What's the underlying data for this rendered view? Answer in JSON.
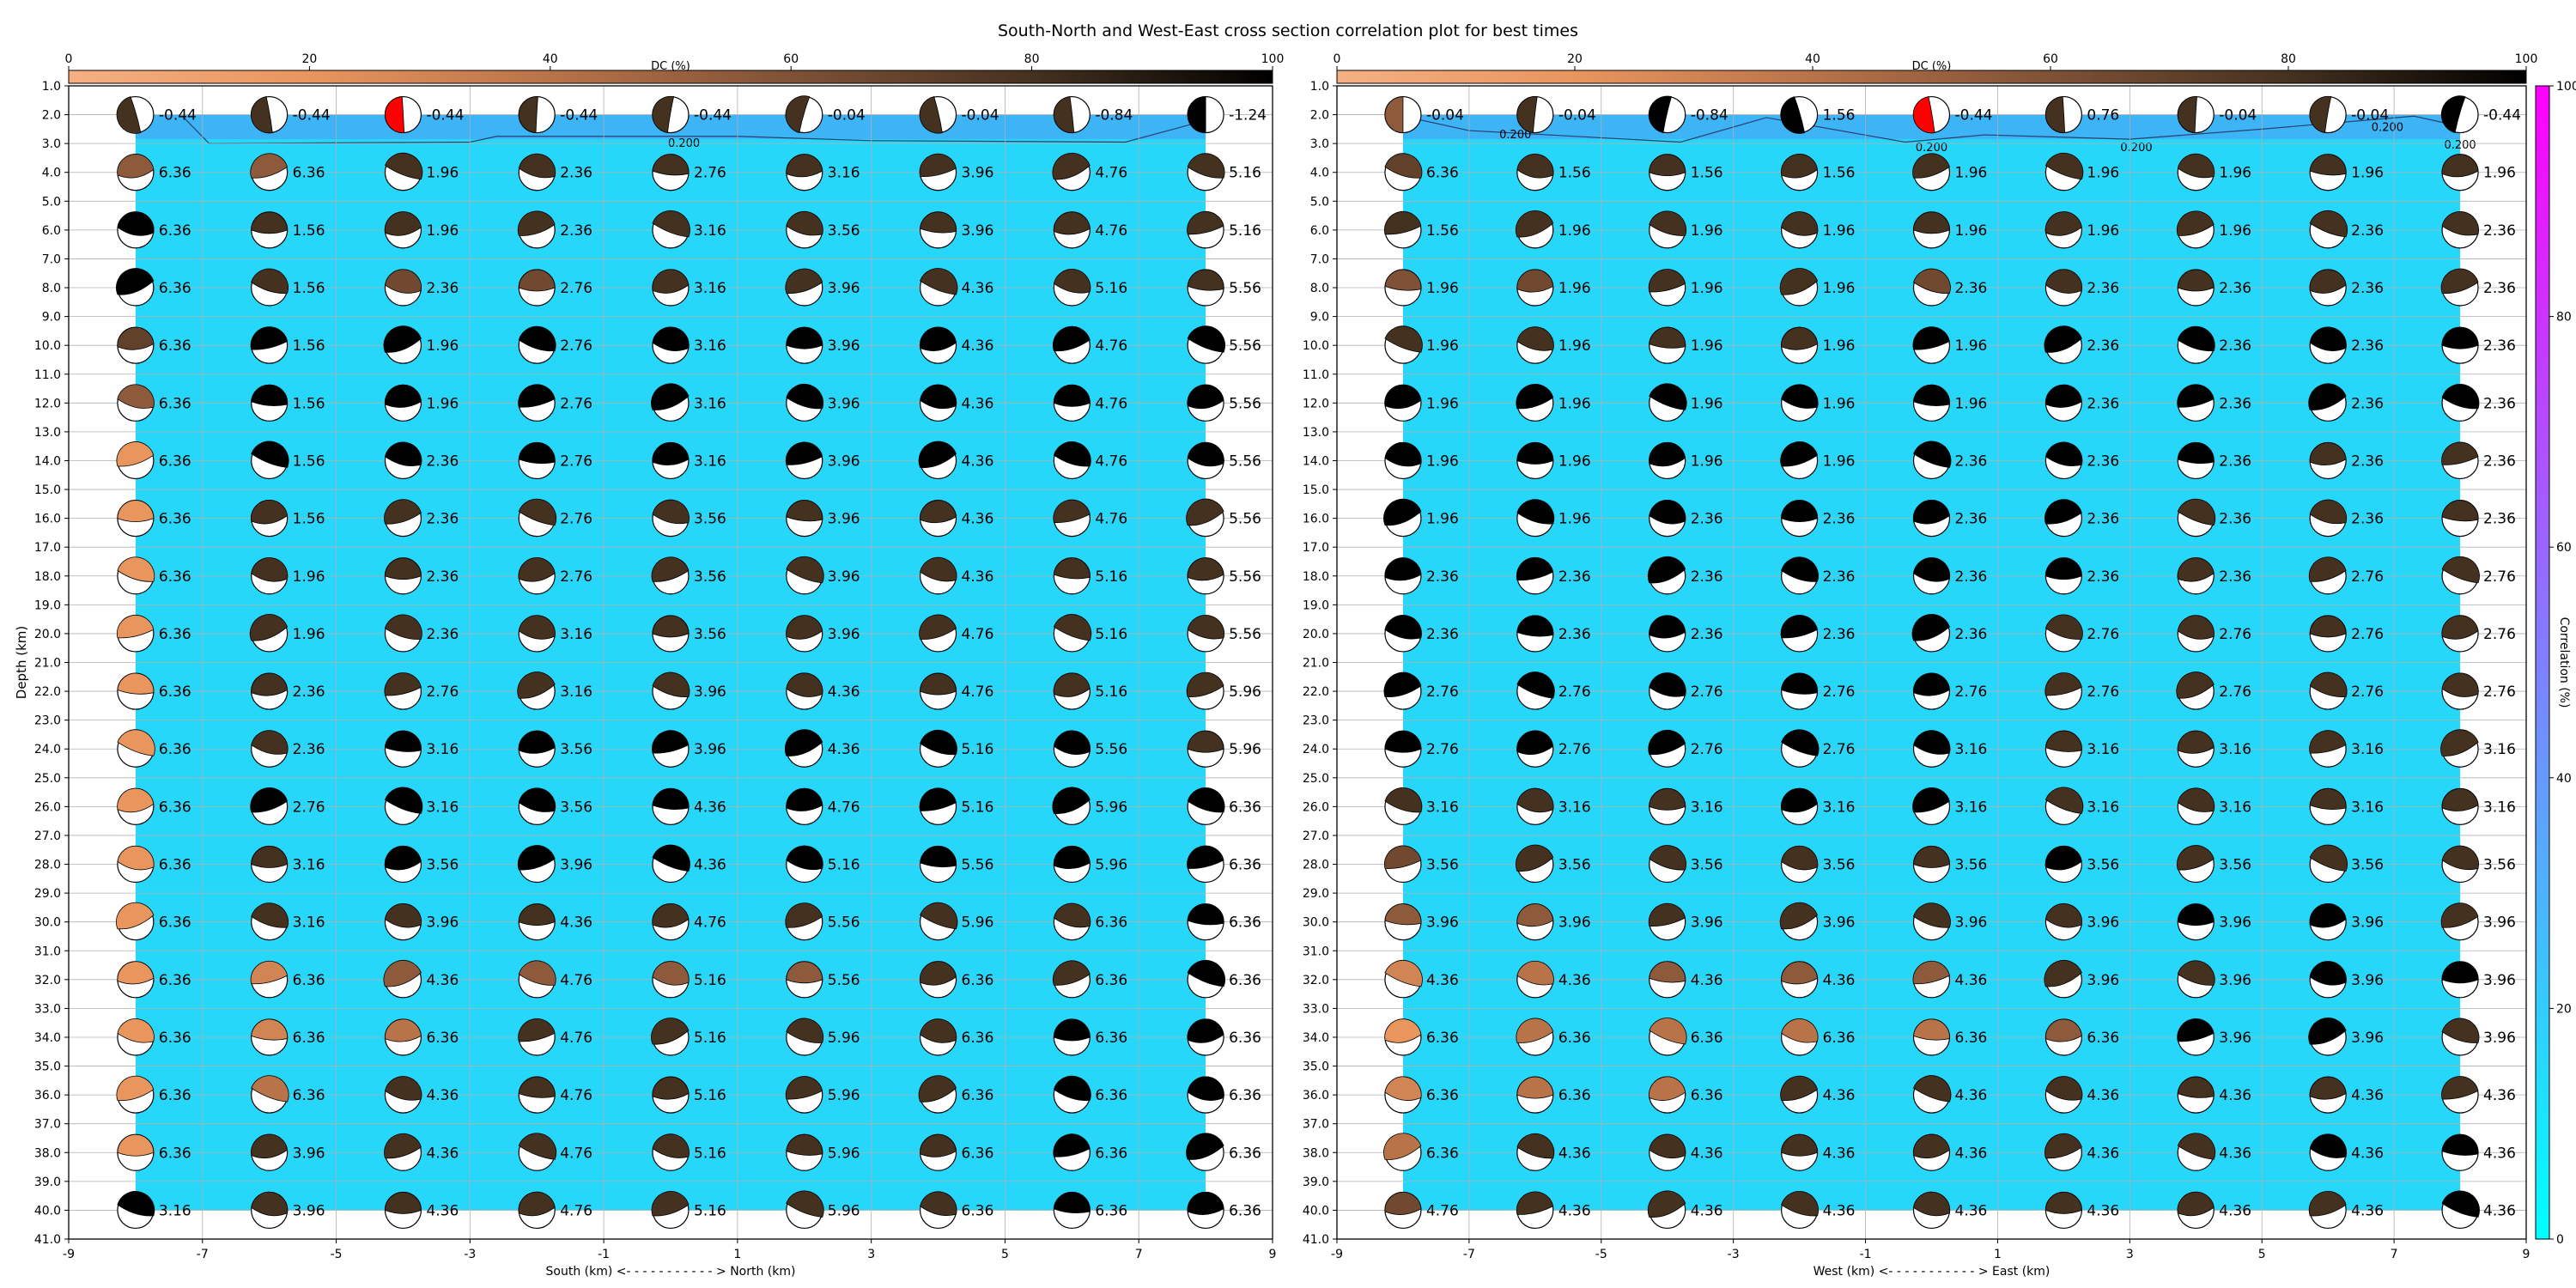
{
  "figure": {
    "title": "South-North and West-East cross section correlation plot for best times"
  },
  "colors": {
    "dc_cmap": [
      "#f4b083",
      "#e9955e",
      "#b87349",
      "#7f5136",
      "#45311f",
      "#000000"
    ],
    "corr_cmap": [
      "#00ffff",
      "#ff00ff"
    ],
    "fill_high": "#27d7fa",
    "fill_low": "#3db4f6",
    "best": "#ff0000"
  },
  "chart_data": [
    {
      "type": "heatmap",
      "subtype": "beachball-correlation-cross-section",
      "xlabel": "South (km) <- - - - - - - - - - - > North (km)",
      "ylabel": "Depth (km)",
      "xlim": [
        -9,
        9
      ],
      "ylim": [
        41,
        1
      ],
      "x_ticks": [
        -9,
        -7,
        -5,
        -3,
        -1,
        1,
        3,
        5,
        7,
        9
      ],
      "y_ticks": [
        1.0,
        2.0,
        3.0,
        4.0,
        5.0,
        6.0,
        7.0,
        8.0,
        9.0,
        10.0,
        11.0,
        12.0,
        13.0,
        14.0,
        15.0,
        16.0,
        17.0,
        18.0,
        19.0,
        20.0,
        21.0,
        22.0,
        23.0,
        24.0,
        25.0,
        26.0,
        27.0,
        28.0,
        29.0,
        30.0,
        31.0,
        32.0,
        33.0,
        34.0,
        35.0,
        36.0,
        37.0,
        38.0,
        39.0,
        40.0,
        41.0
      ],
      "dc_colorbar": {
        "label": "DC (%)",
        "ticks": [
          0,
          20,
          40,
          60,
          80,
          100
        ]
      },
      "x": [
        -8,
        -6,
        -4,
        -2,
        0,
        2,
        4,
        6,
        8
      ],
      "depths": [
        2,
        4,
        6,
        8,
        10,
        12,
        14,
        16,
        18,
        20,
        22,
        24,
        26,
        28,
        30,
        32,
        34,
        36,
        38,
        40
      ],
      "time_labels": [
        [
          "-0.44",
          "-0.44",
          "-0.44",
          "-0.44",
          "-0.44",
          "-0.04",
          "-0.04",
          "-0.84",
          "-1.24"
        ],
        [
          "6.36",
          "6.36",
          "1.96",
          "2.36",
          "2.76",
          "3.16",
          "3.96",
          "4.76",
          "5.16"
        ],
        [
          "6.36",
          "1.56",
          "1.96",
          "2.36",
          "3.16",
          "3.56",
          "3.96",
          "4.76",
          "5.16"
        ],
        [
          "6.36",
          "1.56",
          "2.36",
          "2.76",
          "3.16",
          "3.96",
          "4.36",
          "5.16",
          "5.56"
        ],
        [
          "6.36",
          "1.56",
          "1.96",
          "2.76",
          "3.16",
          "3.96",
          "4.36",
          "4.76",
          "5.56"
        ],
        [
          "6.36",
          "1.56",
          "1.96",
          "2.76",
          "3.16",
          "3.96",
          "4.36",
          "4.76",
          "5.56"
        ],
        [
          "6.36",
          "1.56",
          "2.36",
          "2.76",
          "3.16",
          "3.96",
          "4.36",
          "4.76",
          "5.56"
        ],
        [
          "6.36",
          "1.56",
          "2.36",
          "2.76",
          "3.56",
          "3.96",
          "4.36",
          "4.76",
          "5.56"
        ],
        [
          "6.36",
          "1.96",
          "2.36",
          "2.76",
          "3.56",
          "3.96",
          "4.36",
          "5.16",
          "5.56"
        ],
        [
          "6.36",
          "1.96",
          "2.36",
          "3.16",
          "3.56",
          "3.96",
          "4.76",
          "5.16",
          "5.56"
        ],
        [
          "6.36",
          "2.36",
          "2.76",
          "3.16",
          "3.96",
          "4.36",
          "4.76",
          "5.16",
          "5.96"
        ],
        [
          "6.36",
          "2.36",
          "3.16",
          "3.56",
          "3.96",
          "4.36",
          "5.16",
          "5.56",
          "5.96"
        ],
        [
          "6.36",
          "2.76",
          "3.16",
          "3.56",
          "4.36",
          "4.76",
          "5.16",
          "5.96",
          "6.36"
        ],
        [
          "6.36",
          "3.16",
          "3.56",
          "3.96",
          "4.36",
          "5.16",
          "5.56",
          "5.96",
          "6.36"
        ],
        [
          "6.36",
          "3.16",
          "3.96",
          "4.36",
          "4.76",
          "5.56",
          "5.96",
          "6.36",
          "6.36"
        ],
        [
          "6.36",
          "6.36",
          "4.36",
          "4.76",
          "5.16",
          "5.56",
          "6.36",
          "6.36",
          "6.36"
        ],
        [
          "6.36",
          "6.36",
          "6.36",
          "4.76",
          "5.16",
          "5.96",
          "6.36",
          "6.36",
          "6.36"
        ],
        [
          "6.36",
          "6.36",
          "4.36",
          "4.76",
          "5.16",
          "5.96",
          "6.36",
          "6.36",
          "6.36"
        ],
        [
          "6.36",
          "3.96",
          "4.36",
          "4.76",
          "5.16",
          "5.96",
          "6.36",
          "6.36",
          "6.36"
        ],
        [
          "3.16",
          "3.96",
          "4.36",
          "4.76",
          "5.16",
          "5.96",
          "6.36",
          "6.36",
          "6.36"
        ]
      ],
      "dc_percent": [
        [
          80,
          80,
          80,
          80,
          80,
          80,
          80,
          80,
          100
        ],
        [
          55,
          55,
          80,
          80,
          80,
          80,
          80,
          80,
          80
        ],
        [
          100,
          80,
          80,
          80,
          80,
          80,
          80,
          80,
          80
        ],
        [
          100,
          80,
          65,
          65,
          80,
          80,
          80,
          80,
          80
        ],
        [
          70,
          100,
          100,
          100,
          100,
          100,
          100,
          100,
          100
        ],
        [
          55,
          100,
          100,
          100,
          100,
          100,
          100,
          100,
          100
        ],
        [
          20,
          100,
          100,
          100,
          100,
          100,
          100,
          100,
          100
        ],
        [
          20,
          80,
          80,
          80,
          80,
          80,
          80,
          80,
          80
        ],
        [
          20,
          80,
          80,
          80,
          80,
          80,
          80,
          80,
          80
        ],
        [
          20,
          80,
          80,
          80,
          80,
          80,
          80,
          80,
          80
        ],
        [
          20,
          80,
          80,
          80,
          80,
          80,
          80,
          80,
          80
        ],
        [
          20,
          80,
          100,
          100,
          100,
          100,
          100,
          100,
          80
        ],
        [
          20,
          100,
          100,
          100,
          100,
          100,
          100,
          100,
          100
        ],
        [
          20,
          80,
          100,
          100,
          100,
          100,
          100,
          100,
          100
        ],
        [
          20,
          80,
          80,
          80,
          80,
          80,
          80,
          80,
          100
        ],
        [
          20,
          30,
          55,
          55,
          55,
          55,
          80,
          80,
          100
        ],
        [
          20,
          30,
          40,
          80,
          80,
          80,
          80,
          100,
          100
        ],
        [
          20,
          40,
          80,
          80,
          80,
          80,
          80,
          100,
          100
        ],
        [
          20,
          80,
          80,
          80,
          80,
          80,
          80,
          100,
          100
        ],
        [
          100,
          80,
          80,
          80,
          80,
          80,
          80,
          100,
          100
        ]
      ],
      "best": [
        0,
        2
      ],
      "contour_labels": [
        "0.200"
      ]
    },
    {
      "type": "heatmap",
      "subtype": "beachball-correlation-cross-section",
      "xlabel": "West (km) <- - - - - - - - - - - > East (km)",
      "ylabel": "",
      "xlim": [
        -9,
        9
      ],
      "ylim": [
        41,
        1
      ],
      "x_ticks": [
        -9,
        -7,
        -5,
        -3,
        -1,
        1,
        3,
        5,
        7,
        9
      ],
      "y_ticks": [
        1.0,
        2.0,
        3.0,
        4.0,
        5.0,
        6.0,
        7.0,
        8.0,
        9.0,
        10.0,
        11.0,
        12.0,
        13.0,
        14.0,
        15.0,
        16.0,
        17.0,
        18.0,
        19.0,
        20.0,
        21.0,
        22.0,
        23.0,
        24.0,
        25.0,
        26.0,
        27.0,
        28.0,
        29.0,
        30.0,
        31.0,
        32.0,
        33.0,
        34.0,
        35.0,
        36.0,
        37.0,
        38.0,
        39.0,
        40.0,
        41.0
      ],
      "dc_colorbar": {
        "label": "DC (%)",
        "ticks": [
          0,
          20,
          40,
          60,
          80,
          100
        ]
      },
      "corr_colorbar": {
        "label": "Correlation (%)",
        "ticks": [
          0,
          20,
          40,
          60,
          80,
          100
        ]
      },
      "x": [
        -8,
        -6,
        -4,
        -2,
        0,
        2,
        4,
        6,
        8
      ],
      "depths": [
        2,
        4,
        6,
        8,
        10,
        12,
        14,
        16,
        18,
        20,
        22,
        24,
        26,
        28,
        30,
        32,
        34,
        36,
        38,
        40
      ],
      "time_labels": [
        [
          "-0.04",
          "-0.04",
          "-0.84",
          "1.56",
          "-0.44",
          "0.76",
          "-0.04",
          "-0.04",
          "-0.44"
        ],
        [
          "6.36",
          "1.56",
          "1.56",
          "1.56",
          "1.96",
          "1.96",
          "1.96",
          "1.96",
          "1.96"
        ],
        [
          "1.56",
          "1.96",
          "1.96",
          "1.96",
          "1.96",
          "1.96",
          "1.96",
          "2.36",
          "2.36"
        ],
        [
          "1.96",
          "1.96",
          "1.96",
          "1.96",
          "2.36",
          "2.36",
          "2.36",
          "2.36",
          "2.36"
        ],
        [
          "1.96",
          "1.96",
          "1.96",
          "1.96",
          "1.96",
          "2.36",
          "2.36",
          "2.36",
          "2.36"
        ],
        [
          "1.96",
          "1.96",
          "1.96",
          "1.96",
          "1.96",
          "2.36",
          "2.36",
          "2.36",
          "2.36"
        ],
        [
          "1.96",
          "1.96",
          "1.96",
          "1.96",
          "2.36",
          "2.36",
          "2.36",
          "2.36",
          "2.36"
        ],
        [
          "1.96",
          "1.96",
          "2.36",
          "2.36",
          "2.36",
          "2.36",
          "2.36",
          "2.36",
          "2.36"
        ],
        [
          "2.36",
          "2.36",
          "2.36",
          "2.36",
          "2.36",
          "2.36",
          "2.36",
          "2.76",
          "2.76"
        ],
        [
          "2.36",
          "2.36",
          "2.36",
          "2.36",
          "2.36",
          "2.76",
          "2.76",
          "2.76",
          "2.76"
        ],
        [
          "2.76",
          "2.76",
          "2.76",
          "2.76",
          "2.76",
          "2.76",
          "2.76",
          "2.76",
          "2.76"
        ],
        [
          "2.76",
          "2.76",
          "2.76",
          "2.76",
          "3.16",
          "3.16",
          "3.16",
          "3.16",
          "3.16"
        ],
        [
          "3.16",
          "3.16",
          "3.16",
          "3.16",
          "3.16",
          "3.16",
          "3.16",
          "3.16",
          "3.16"
        ],
        [
          "3.56",
          "3.56",
          "3.56",
          "3.56",
          "3.56",
          "3.56",
          "3.56",
          "3.56",
          "3.56"
        ],
        [
          "3.96",
          "3.96",
          "3.96",
          "3.96",
          "3.96",
          "3.96",
          "3.96",
          "3.96",
          "3.96"
        ],
        [
          "4.36",
          "4.36",
          "4.36",
          "4.36",
          "4.36",
          "3.96",
          "3.96",
          "3.96",
          "3.96"
        ],
        [
          "6.36",
          "6.36",
          "6.36",
          "6.36",
          "6.36",
          "6.36",
          "3.96",
          "3.96",
          "3.96"
        ],
        [
          "6.36",
          "6.36",
          "6.36",
          "4.36",
          "4.36",
          "4.36",
          "4.36",
          "4.36",
          "4.36"
        ],
        [
          "6.36",
          "4.36",
          "4.36",
          "4.36",
          "4.36",
          "4.36",
          "4.36",
          "4.36",
          "4.36"
        ],
        [
          "4.76",
          "4.36",
          "4.36",
          "4.36",
          "4.36",
          "4.36",
          "4.36",
          "4.36",
          "4.36"
        ]
      ],
      "dc_percent": [
        [
          55,
          80,
          100,
          100,
          80,
          80,
          80,
          80,
          100
        ],
        [
          70,
          80,
          80,
          80,
          80,
          80,
          80,
          80,
          80
        ],
        [
          80,
          80,
          80,
          80,
          80,
          80,
          80,
          80,
          80
        ],
        [
          60,
          65,
          80,
          80,
          65,
          80,
          80,
          80,
          80
        ],
        [
          80,
          80,
          80,
          80,
          100,
          100,
          100,
          100,
          100
        ],
        [
          100,
          100,
          100,
          100,
          100,
          100,
          100,
          100,
          100
        ],
        [
          100,
          100,
          100,
          100,
          100,
          100,
          100,
          80,
          80
        ],
        [
          100,
          100,
          100,
          100,
          100,
          100,
          80,
          80,
          80
        ],
        [
          100,
          100,
          100,
          100,
          100,
          100,
          80,
          80,
          80
        ],
        [
          100,
          100,
          100,
          100,
          100,
          80,
          80,
          80,
          80
        ],
        [
          100,
          100,
          100,
          100,
          100,
          80,
          80,
          80,
          80
        ],
        [
          100,
          100,
          100,
          100,
          100,
          80,
          80,
          80,
          80
        ],
        [
          80,
          80,
          80,
          100,
          100,
          80,
          80,
          80,
          80
        ],
        [
          65,
          80,
          80,
          80,
          80,
          100,
          80,
          80,
          80
        ],
        [
          55,
          55,
          80,
          80,
          80,
          80,
          100,
          100,
          80
        ],
        [
          30,
          40,
          55,
          55,
          55,
          80,
          80,
          100,
          100
        ],
        [
          20,
          40,
          40,
          40,
          40,
          55,
          100,
          100,
          80
        ],
        [
          30,
          40,
          40,
          80,
          80,
          80,
          80,
          80,
          80
        ],
        [
          40,
          80,
          80,
          80,
          80,
          80,
          80,
          100,
          100
        ],
        [
          65,
          80,
          80,
          80,
          80,
          80,
          80,
          80,
          100
        ]
      ],
      "best": [
        0,
        4
      ],
      "contour_labels": [
        "0.200",
        "0.200",
        "0.200",
        "0.200",
        "0.200"
      ]
    }
  ]
}
